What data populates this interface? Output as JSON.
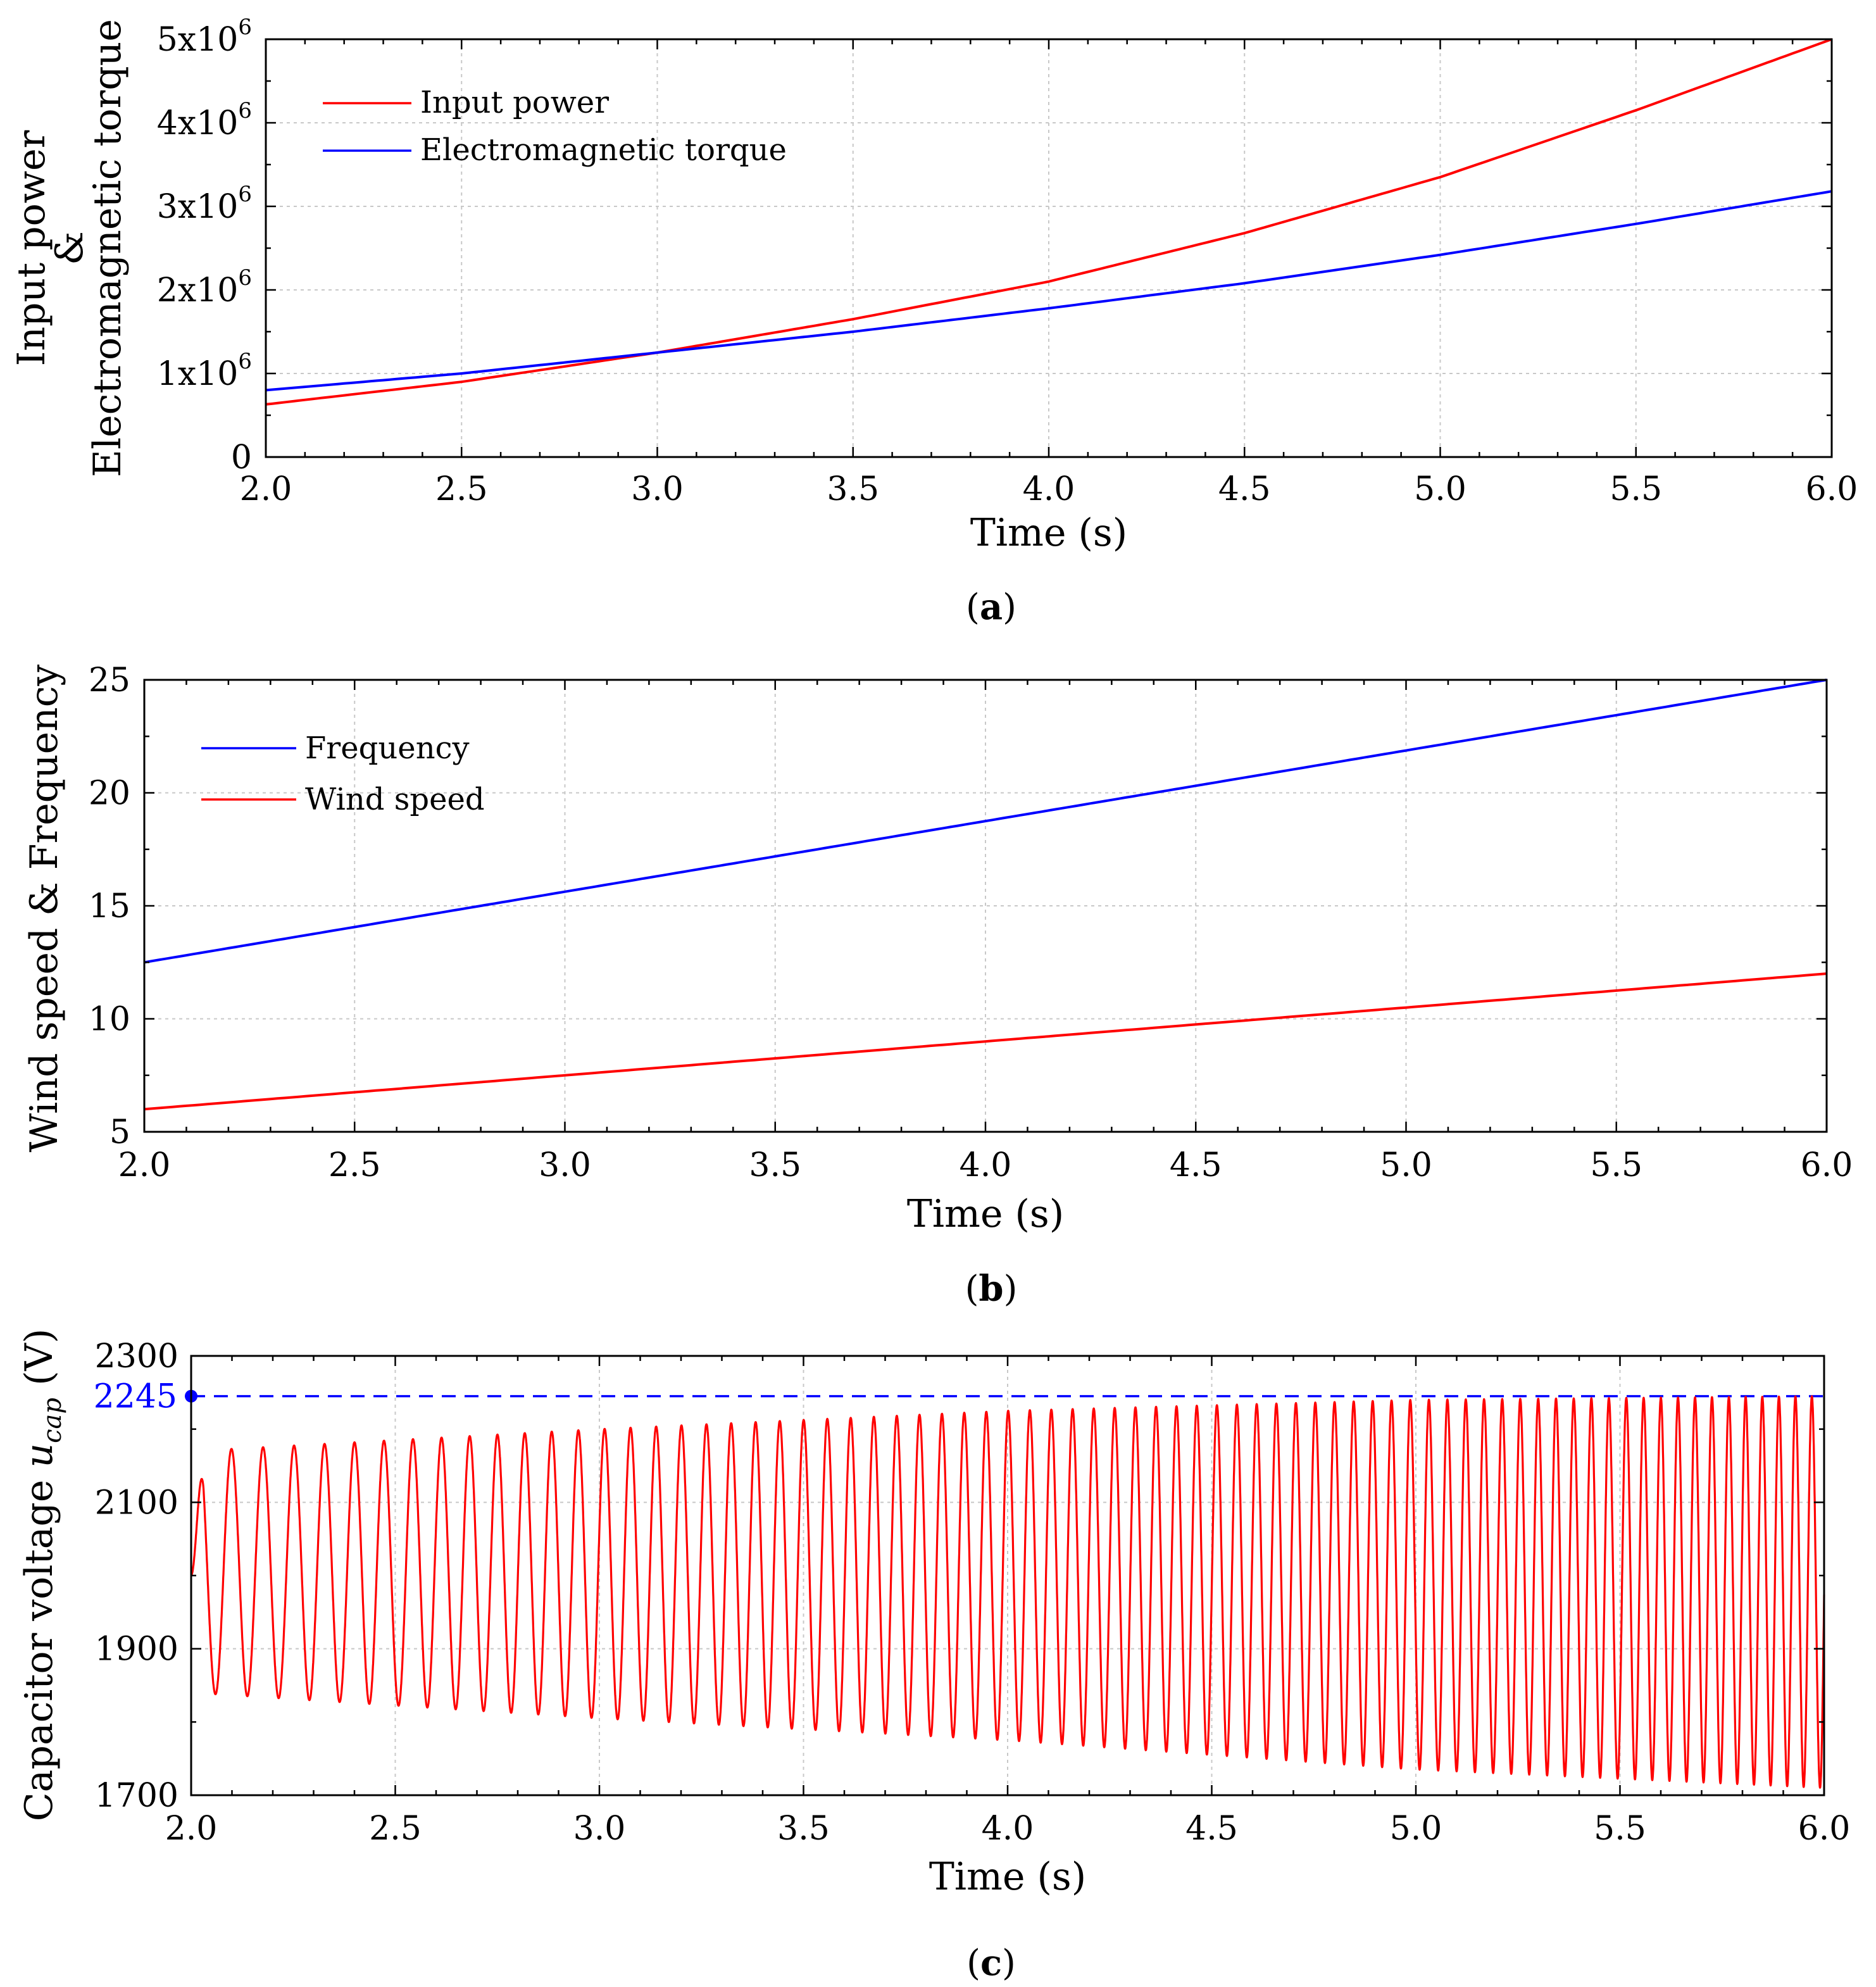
{
  "chart_data": [
    {
      "id": "a",
      "type": "line",
      "caption": "a",
      "xlabel": "Time (s)",
      "ylabel_lines": [
        "Input power",
        "&",
        "Electromagnetic torque"
      ],
      "xlim": [
        2.0,
        6.0
      ],
      "ylim": [
        0,
        5000000
      ],
      "xticks": [
        "2.0",
        "2.5",
        "3.0",
        "3.5",
        "4.0",
        "4.5",
        "5.0",
        "5.5",
        "6.0"
      ],
      "yticks": [
        {
          "value": 0,
          "mant": "0",
          "exp": ""
        },
        {
          "value": 1000000,
          "mant": "1x10",
          "exp": "6"
        },
        {
          "value": 2000000,
          "mant": "2x10",
          "exp": "6"
        },
        {
          "value": 3000000,
          "mant": "3x10",
          "exp": "6"
        },
        {
          "value": 4000000,
          "mant": "4x10",
          "exp": "6"
        },
        {
          "value": 5000000,
          "mant": "5x10",
          "exp": "6"
        }
      ],
      "grid": true,
      "legend_position": "top-left",
      "series": [
        {
          "name": "Input power",
          "color": "#ff0000",
          "x": [
            2.0,
            2.5,
            3.0,
            3.5,
            4.0,
            4.5,
            5.0,
            5.5,
            6.0
          ],
          "y": [
            630000,
            900000,
            1250000,
            1650000,
            2100000,
            2680000,
            3350000,
            4150000,
            5000000
          ]
        },
        {
          "name": "Electromagnetic torque",
          "color": "#0000ff",
          "x": [
            2.0,
            2.5,
            3.0,
            3.5,
            4.0,
            4.5,
            5.0,
            5.5,
            6.0
          ],
          "y": [
            800000,
            1000000,
            1250000,
            1500000,
            1780000,
            2080000,
            2420000,
            2790000,
            3180000
          ]
        }
      ]
    },
    {
      "id": "b",
      "type": "line",
      "caption": "b",
      "xlabel": "Time (s)",
      "ylabel_lines": [
        "Wind speed & Frequency"
      ],
      "xlim": [
        2.0,
        6.0
      ],
      "ylim": [
        5,
        25
      ],
      "xticks": [
        "2.0",
        "2.5",
        "3.0",
        "3.5",
        "4.0",
        "4.5",
        "5.0",
        "5.5",
        "6.0"
      ],
      "yticks": [
        {
          "value": 5,
          "mant": "5",
          "exp": ""
        },
        {
          "value": 10,
          "mant": "10",
          "exp": ""
        },
        {
          "value": 15,
          "mant": "15",
          "exp": ""
        },
        {
          "value": 20,
          "mant": "20",
          "exp": ""
        },
        {
          "value": 25,
          "mant": "25",
          "exp": ""
        }
      ],
      "grid": true,
      "legend_position": "top-left",
      "series": [
        {
          "name": "Frequency",
          "color": "#0000ff",
          "x": [
            2.0,
            6.0
          ],
          "y": [
            12.5,
            25.0
          ]
        },
        {
          "name": "Wind speed",
          "color": "#ff0000",
          "x": [
            2.0,
            6.0
          ],
          "y": [
            6.0,
            12.0
          ]
        }
      ]
    },
    {
      "id": "c",
      "type": "line",
      "caption": "c",
      "xlabel": "Time (s)",
      "ylabel_main": "Capacitor voltage ",
      "ylabel_var": "u",
      "ylabel_sub": "cap",
      "ylabel_unit": " (V)",
      "xlim": [
        2.0,
        6.0
      ],
      "ylim": [
        1700,
        2300
      ],
      "xticks": [
        "2.0",
        "2.5",
        "3.0",
        "3.5",
        "4.0",
        "4.5",
        "5.0",
        "5.5",
        "6.0"
      ],
      "yticks": [
        {
          "value": 1700,
          "mant": "1700",
          "exp": ""
        },
        {
          "value": 1900,
          "mant": "1900",
          "exp": ""
        },
        {
          "value": 2100,
          "mant": "2100",
          "exp": ""
        },
        {
          "value": 2300,
          "mant": "2300",
          "exp": ""
        }
      ],
      "grid": true,
      "reference_line": {
        "value": 2245,
        "label": "2245",
        "color": "#0000ff"
      },
      "oscillation": {
        "name": "Capacitor voltage",
        "color": "#ff0000",
        "start_value": 2000,
        "time": [
          2.0,
          3.0,
          4.0,
          5.0,
          6.0
        ],
        "frequency_hz": [
          12.5,
          15.6,
          18.75,
          21.9,
          25.0
        ],
        "peak": [
          2170,
          2200,
          2225,
          2240,
          2245
        ],
        "trough": [
          1840,
          1805,
          1775,
          1735,
          1710
        ]
      }
    }
  ]
}
